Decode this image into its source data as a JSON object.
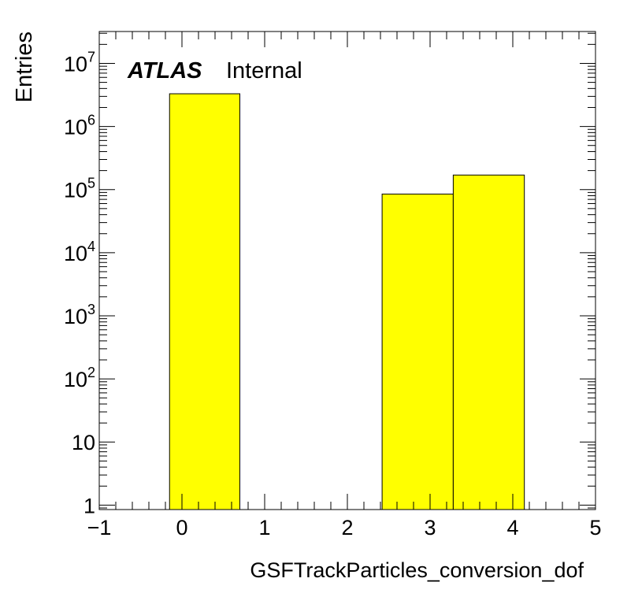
{
  "chart_data": {
    "type": "bar",
    "histogram": true,
    "bins": [
      {
        "x_low": -0.15,
        "x_high": 0.7,
        "value": 3300000
      },
      {
        "x_low": 0.7,
        "x_high": 1.56,
        "value": 0
      },
      {
        "x_low": 1.56,
        "x_high": 2.42,
        "value": 0
      },
      {
        "x_low": 2.42,
        "x_high": 3.28,
        "value": 85000
      },
      {
        "x_low": 3.28,
        "x_high": 4.14,
        "value": 170000
      }
    ],
    "xlabel": "GSFTrackParticles_conversion_dof",
    "ylabel": "Entries",
    "xlim": [
      -1,
      5
    ],
    "ylim": [
      0.85,
      32000000
    ],
    "yscale": "log",
    "x_ticks": [
      {
        "value": -1,
        "label": "−1"
      },
      {
        "value": 0,
        "label": "0"
      },
      {
        "value": 1,
        "label": "1"
      },
      {
        "value": 2,
        "label": "2"
      },
      {
        "value": 3,
        "label": "3"
      },
      {
        "value": 4,
        "label": "4"
      },
      {
        "value": 5,
        "label": "5"
      }
    ],
    "y_ticks": [
      {
        "value": 1,
        "base": "1",
        "exp": ""
      },
      {
        "value": 10,
        "base": "10",
        "exp": ""
      },
      {
        "value": 100,
        "base": "10",
        "exp": "2"
      },
      {
        "value": 1000,
        "base": "10",
        "exp": "3"
      },
      {
        "value": 10000,
        "base": "10",
        "exp": "4"
      },
      {
        "value": 100000,
        "base": "10",
        "exp": "5"
      },
      {
        "value": 1000000,
        "base": "10",
        "exp": "6"
      },
      {
        "value": 10000000,
        "base": "10",
        "exp": "7"
      }
    ],
    "bar_color": "#ffff00",
    "edge_color": "#000000",
    "grid": false,
    "legend": "none"
  },
  "annotation": {
    "experiment": "ATLAS",
    "status": "Internal"
  }
}
